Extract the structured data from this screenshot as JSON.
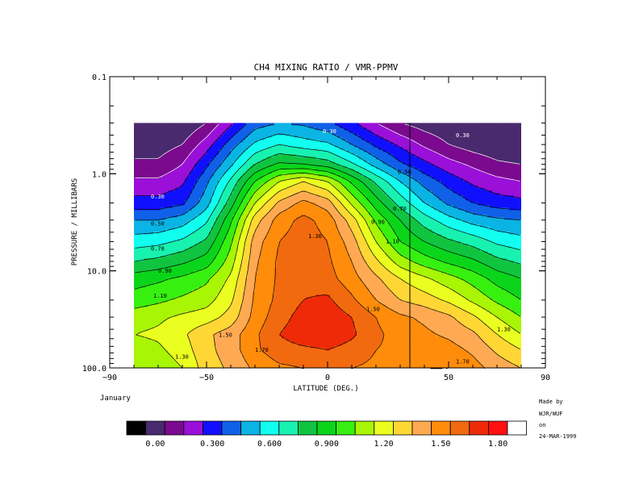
{
  "chart_data": {
    "type": "contour",
    "title": "CH4 MIXING RATIO / VMR-PPMV",
    "xlabel": "LATITUDE (DEG.)",
    "ylabel": "PRESSURE / MILLIBARS",
    "xlim": [
      -90,
      90
    ],
    "ylim": [
      100.0,
      0.1
    ],
    "y_scale": "log",
    "x_ticks": [
      "−90",
      "−50",
      "0",
      "50",
      "90"
    ],
    "x_tick_values": [
      -90,
      -50,
      0,
      50,
      90
    ],
    "y_ticks": [
      "0.1",
      "1.0",
      "10.0",
      "100.0"
    ],
    "y_tick_values": [
      0.1,
      1.0,
      10.0,
      100.0
    ],
    "data_lat_range": [
      -80,
      80
    ],
    "data_pressure_range": [
      100.0,
      0.3
    ],
    "marker_latitude": 34,
    "contour_levels": [
      0.0,
      0.1,
      0.2,
      0.3,
      0.4,
      0.5,
      0.6,
      0.7,
      0.8,
      0.9,
      1.0,
      1.1,
      1.2,
      1.3,
      1.4,
      1.5,
      1.6,
      1.7,
      1.8
    ],
    "contour_labels": [
      {
        "text": "0.30",
        "lat": -73,
        "p": 1.8
      },
      {
        "text": "0.50",
        "lat": -73,
        "p": 3.4
      },
      {
        "text": "0.70",
        "lat": -73,
        "p": 6.2
      },
      {
        "text": "0.90",
        "lat": -70,
        "p": 10.5
      },
      {
        "text": "1.10",
        "lat": -72,
        "p": 19.0
      },
      {
        "text": "1.30",
        "lat": -63,
        "p": 80.0
      },
      {
        "text": "1.50",
        "lat": -45,
        "p": 48.0
      },
      {
        "text": "1.70",
        "lat": -30,
        "p": 68.0
      },
      {
        "text": "1.30",
        "lat": -8,
        "p": 4.6
      },
      {
        "text": "0.90",
        "lat": 18,
        "p": 3.3
      },
      {
        "text": "1.10",
        "lat": 24,
        "p": 5.2
      },
      {
        "text": "0.70",
        "lat": 27,
        "p": 2.4
      },
      {
        "text": "0.50",
        "lat": 29,
        "p": 1.0
      },
      {
        "text": "0.30",
        "lat": -2,
        "p": 0.38
      },
      {
        "text": "0.30",
        "lat": 53,
        "p": 0.42
      },
      {
        "text": "1.50",
        "lat": 16,
        "p": 26.0
      },
      {
        "text": "1.30",
        "lat": 70,
        "p": 42.0
      },
      {
        "text": "1.70",
        "lat": 53,
        "p": 90.0
      }
    ],
    "field_z": [
      [
        0.1,
        0.1,
        0.1,
        0.2,
        0.38,
        0.55,
        0.6,
        0.58,
        0.52,
        0.42,
        0.3,
        0.2,
        0.15,
        0.12,
        0.1,
        0.1,
        0.1
      ],
      [
        0.15,
        0.15,
        0.2,
        0.35,
        0.55,
        0.72,
        0.8,
        0.75,
        0.72,
        0.6,
        0.48,
        0.38,
        0.28,
        0.2,
        0.15,
        0.12,
        0.1
      ],
      [
        0.22,
        0.22,
        0.3,
        0.48,
        0.68,
        0.9,
        1.02,
        1.0,
        0.95,
        0.82,
        0.66,
        0.52,
        0.43,
        0.34,
        0.28,
        0.22,
        0.2
      ],
      [
        0.32,
        0.32,
        0.38,
        0.58,
        0.82,
        1.1,
        1.3,
        1.4,
        1.3,
        1.08,
        0.88,
        0.7,
        0.56,
        0.46,
        0.38,
        0.33,
        0.3
      ],
      [
        0.44,
        0.44,
        0.48,
        0.66,
        0.95,
        1.3,
        1.52,
        1.63,
        1.55,
        1.28,
        1.05,
        0.86,
        0.7,
        0.58,
        0.5,
        0.45,
        0.43
      ],
      [
        0.6,
        0.6,
        0.65,
        0.78,
        1.08,
        1.45,
        1.65,
        1.73,
        1.66,
        1.45,
        1.18,
        1.0,
        0.85,
        0.74,
        0.66,
        0.62,
        0.6
      ],
      [
        0.75,
        0.77,
        0.82,
        0.92,
        1.18,
        1.55,
        1.7,
        1.75,
        1.7,
        1.55,
        1.3,
        1.1,
        1.0,
        0.92,
        0.86,
        0.78,
        0.74
      ],
      [
        0.9,
        0.93,
        0.98,
        1.05,
        1.25,
        1.58,
        1.72,
        1.76,
        1.72,
        1.6,
        1.42,
        1.25,
        1.15,
        1.08,
        1.02,
        0.93,
        0.88
      ],
      [
        1.05,
        1.08,
        1.12,
        1.18,
        1.32,
        1.6,
        1.72,
        1.77,
        1.74,
        1.64,
        1.52,
        1.4,
        1.32,
        1.24,
        1.16,
        1.06,
        1.0
      ],
      [
        1.15,
        1.18,
        1.22,
        1.26,
        1.38,
        1.62,
        1.73,
        1.8,
        1.82,
        1.72,
        1.6,
        1.5,
        1.45,
        1.38,
        1.28,
        1.18,
        1.1
      ],
      [
        1.25,
        1.28,
        1.32,
        1.35,
        1.44,
        1.64,
        1.76,
        1.84,
        1.87,
        1.8,
        1.7,
        1.62,
        1.58,
        1.52,
        1.42,
        1.3,
        1.2
      ],
      [
        1.3,
        1.32,
        1.38,
        1.48,
        1.55,
        1.68,
        1.8,
        1.86,
        1.88,
        1.82,
        1.72,
        1.66,
        1.62,
        1.58,
        1.52,
        1.4,
        1.3
      ],
      [
        1.25,
        1.28,
        1.35,
        1.47,
        1.55,
        1.68,
        1.76,
        1.78,
        1.8,
        1.76,
        1.7,
        1.68,
        1.66,
        1.64,
        1.58,
        1.48,
        1.4
      ],
      [
        1.2,
        1.23,
        1.3,
        1.45,
        1.52,
        1.62,
        1.68,
        1.7,
        1.71,
        1.7,
        1.68,
        1.68,
        1.7,
        1.7,
        1.64,
        1.56,
        1.5
      ]
    ],
    "field_lats": [
      -80,
      -70,
      -60,
      -50,
      -40,
      -30,
      -20,
      -10,
      0,
      10,
      20,
      30,
      40,
      50,
      60,
      70,
      80
    ],
    "field_pressures": [
      0.3,
      0.5,
      0.8,
      1.2,
      2.0,
      3.0,
      5.0,
      8.0,
      12.0,
      20.0,
      30.0,
      45.0,
      65.0,
      100.0
    ],
    "colorbar": {
      "colors": [
        "#000000",
        "#4a2a6e",
        "#7b0a8e",
        "#9a10d8",
        "#1010ff",
        "#1060e8",
        "#0ab4e4",
        "#12fff0",
        "#18f2b0",
        "#10c440",
        "#0ad51a",
        "#37f010",
        "#a8f505",
        "#eaff20",
        "#ffd735",
        "#ffaa52",
        "#ff8c0a",
        "#f26a0f",
        "#ee2a08",
        "#ff1010",
        "#ffffff"
      ],
      "labels": [
        "0.00",
        "0.300",
        "0.600",
        "0.900",
        "1.20",
        "1.50",
        "1.80"
      ]
    }
  },
  "annotations": {
    "month": "January",
    "made_by_line1": "Made by",
    "made_by_line2": "WJR/WUF",
    "made_by_line3": "on",
    "made_by_line4": "24-MAR-1999"
  },
  "colors": {
    "background": "#ffffff",
    "axis": "#000000",
    "contour_line": "#000000"
  }
}
